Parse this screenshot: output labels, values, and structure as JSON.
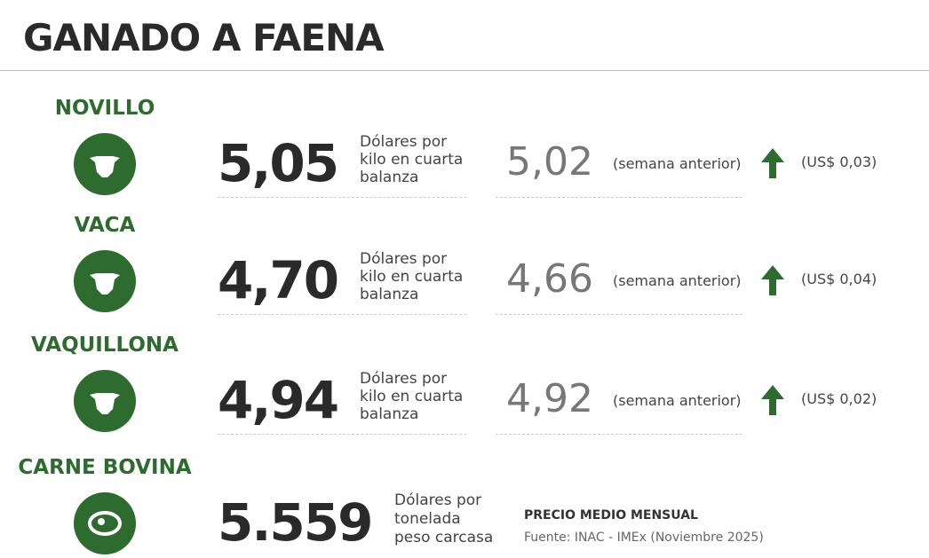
{
  "header": {
    "title": "GANADO A FAENA"
  },
  "rows": [
    {
      "label": "NOVILLO",
      "price": "5,05",
      "unit": [
        "Dólares por",
        "kilo en cuarta",
        "balanza"
      ],
      "previous": "5,02",
      "previous_note": "(semana anterior)",
      "change": "(US$ 0,03)"
    },
    {
      "label": "VACA",
      "price": "4,70",
      "unit": [
        "Dólares por",
        "kilo en cuarta",
        "balanza"
      ],
      "previous": "4,66",
      "previous_note": "(semana anterior)",
      "change": "(US$ 0,04)"
    },
    {
      "label": "VAQUILLONA",
      "price": "4,94",
      "unit": [
        "Dólares por",
        "kilo en cuarta",
        "balanza"
      ],
      "previous": "4,92",
      "previous_note": "(semana anterior)",
      "change": "(US$ 0,02)"
    }
  ],
  "beef": {
    "label": "CARNE BOVINA",
    "price": "5.559",
    "unit": [
      "Dólares por",
      "tonelada",
      "peso carcasa"
    ],
    "note_title": "PRECIO MEDIO MENSUAL",
    "source": "Fuente: INAC - IMEx (Noviembre 2025)"
  }
}
